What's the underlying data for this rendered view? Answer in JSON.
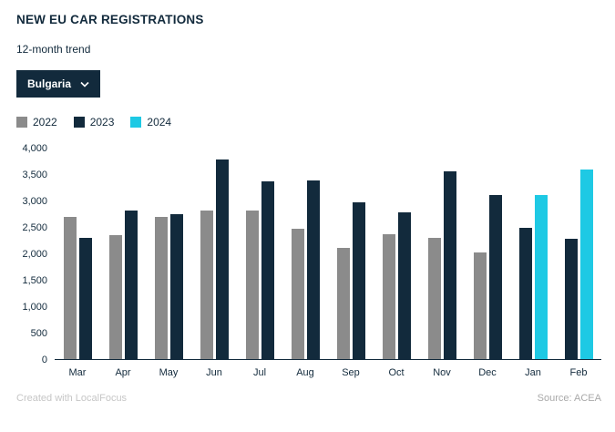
{
  "header": {
    "title": "NEW EU CAR REGISTRATIONS",
    "subtitle": "12-month trend"
  },
  "dropdown": {
    "selected": "Bulgaria"
  },
  "legend": [
    {
      "label": "2022",
      "color": "#8b8b8b"
    },
    {
      "label": "2023",
      "color": "#122a3c"
    },
    {
      "label": "2024",
      "color": "#1ec9e4"
    }
  ],
  "chart_data": {
    "type": "bar",
    "title": "NEW EU CAR REGISTRATIONS",
    "subtitle": "12-month trend",
    "categories": [
      "Mar",
      "Apr",
      "May",
      "Jun",
      "Jul",
      "Aug",
      "Sep",
      "Oct",
      "Nov",
      "Dec",
      "Jan",
      "Feb"
    ],
    "series": [
      {
        "name": "2022",
        "color": "#8b8b8b",
        "values": [
          2700,
          2350,
          2700,
          2820,
          2830,
          2480,
          2120,
          2370,
          2300,
          2020,
          null,
          null
        ]
      },
      {
        "name": "2023",
        "color": "#122a3c",
        "values": [
          2300,
          2830,
          2760,
          3800,
          3380,
          3400,
          2970,
          2780,
          3560,
          3120,
          2500,
          2280
        ]
      },
      {
        "name": "2024",
        "color": "#1ec9e4",
        "values": [
          null,
          null,
          null,
          null,
          null,
          null,
          null,
          null,
          null,
          null,
          3120,
          3600
        ]
      }
    ],
    "ylim": [
      0,
      4000
    ],
    "ytick_values": [
      4000,
      3500,
      3000,
      2500,
      2000,
      1500,
      1000,
      500,
      0
    ],
    "yticks": [
      "4,000",
      "3,500",
      "3,000",
      "2,500",
      "2,000",
      "1,500",
      "1,000",
      "500",
      "0"
    ],
    "grid": false,
    "legend_position": "top-left"
  },
  "footer": {
    "left": "Created with LocalFocus",
    "right": "Source:  ACEA"
  }
}
